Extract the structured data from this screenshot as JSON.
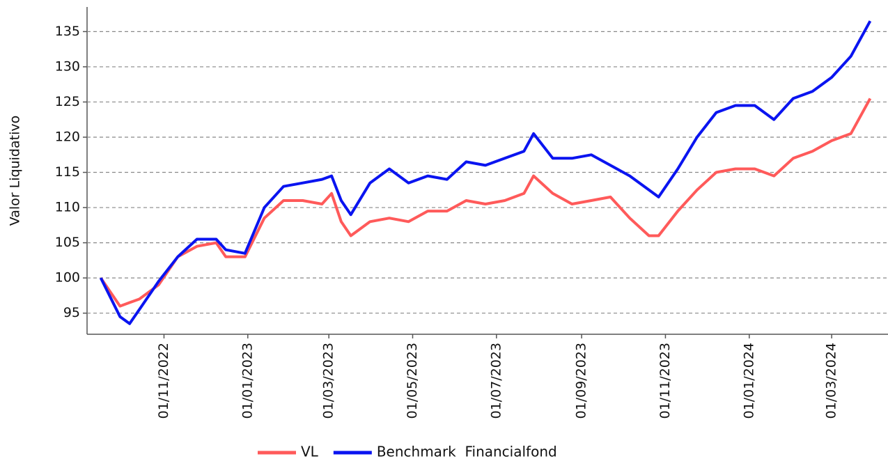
{
  "chart_data": {
    "type": "line",
    "y_label": "Valor Liquidativo",
    "x": [
      "2022-09-16",
      "2022-09-30",
      "2022-10-07",
      "2022-10-14",
      "2022-10-28",
      "2022-11-11",
      "2022-11-25",
      "2022-12-09",
      "2022-12-16",
      "2022-12-30",
      "2023-01-13",
      "2023-01-27",
      "2023-02-10",
      "2023-02-24",
      "2023-03-03",
      "2023-03-10",
      "2023-03-17",
      "2023-03-31",
      "2023-04-14",
      "2023-04-28",
      "2023-05-12",
      "2023-05-26",
      "2023-06-09",
      "2023-06-23",
      "2023-07-07",
      "2023-07-21",
      "2023-07-28",
      "2023-08-11",
      "2023-08-25",
      "2023-09-08",
      "2023-09-22",
      "2023-10-06",
      "2023-10-20",
      "2023-10-27",
      "2023-11-10",
      "2023-11-24",
      "2023-12-08",
      "2023-12-22",
      "2024-01-05",
      "2024-01-19",
      "2024-02-02",
      "2024-02-16",
      "2024-03-01",
      "2024-03-15",
      "2024-03-29"
    ],
    "series": [
      {
        "name": "VL",
        "color": "#ff5a5a",
        "values": [
          100,
          96,
          96.5,
          97,
          99,
          103,
          104.5,
          105,
          103,
          103,
          108.5,
          111,
          111,
          110.5,
          112,
          108,
          106,
          108,
          108.5,
          108,
          109.5,
          109.5,
          111,
          110.5,
          111,
          112,
          114.5,
          112,
          110.5,
          111,
          111.5,
          108.5,
          106,
          106,
          109.5,
          112.5,
          115,
          115.5,
          115.5,
          114.5,
          117,
          118,
          119.5,
          120.5,
          125.5
        ]
      },
      {
        "name": "Benchmark  Financialfond",
        "color": "#0a14f0",
        "values": [
          100,
          94.5,
          93.5,
          95.5,
          99.5,
          103,
          105.5,
          105.5,
          104,
          103.5,
          110,
          113,
          113.5,
          114,
          114.5,
          111,
          109,
          113.5,
          115.5,
          113.5,
          114.5,
          114,
          116.5,
          116,
          117,
          118,
          120.5,
          117,
          117,
          117.5,
          116,
          114.5,
          112.5,
          111.5,
          115.5,
          120,
          123.5,
          124.5,
          124.5,
          122.5,
          125.5,
          126.5,
          128.5,
          131.5,
          136.5
        ]
      }
    ],
    "xlim": [
      "2022-09-06",
      "2024-04-11"
    ],
    "xticks": [
      {
        "value": "2022-11-01",
        "label": "01/11/2022"
      },
      {
        "value": "2023-01-01",
        "label": "01/01/2023"
      },
      {
        "value": "2023-03-01",
        "label": "01/03/2023"
      },
      {
        "value": "2023-05-01",
        "label": "01/05/2023"
      },
      {
        "value": "2023-07-01",
        "label": "01/07/2023"
      },
      {
        "value": "2023-09-01",
        "label": "01/09/2023"
      },
      {
        "value": "2023-11-01",
        "label": "01/11/2023"
      },
      {
        "value": "2024-01-01",
        "label": "01/01/2024"
      },
      {
        "value": "2024-03-01",
        "label": "01/03/2024"
      }
    ],
    "ylim": [
      92,
      138.5
    ],
    "yticks": [
      95,
      100,
      105,
      110,
      115,
      120,
      125,
      130,
      135
    ],
    "grid": true
  }
}
